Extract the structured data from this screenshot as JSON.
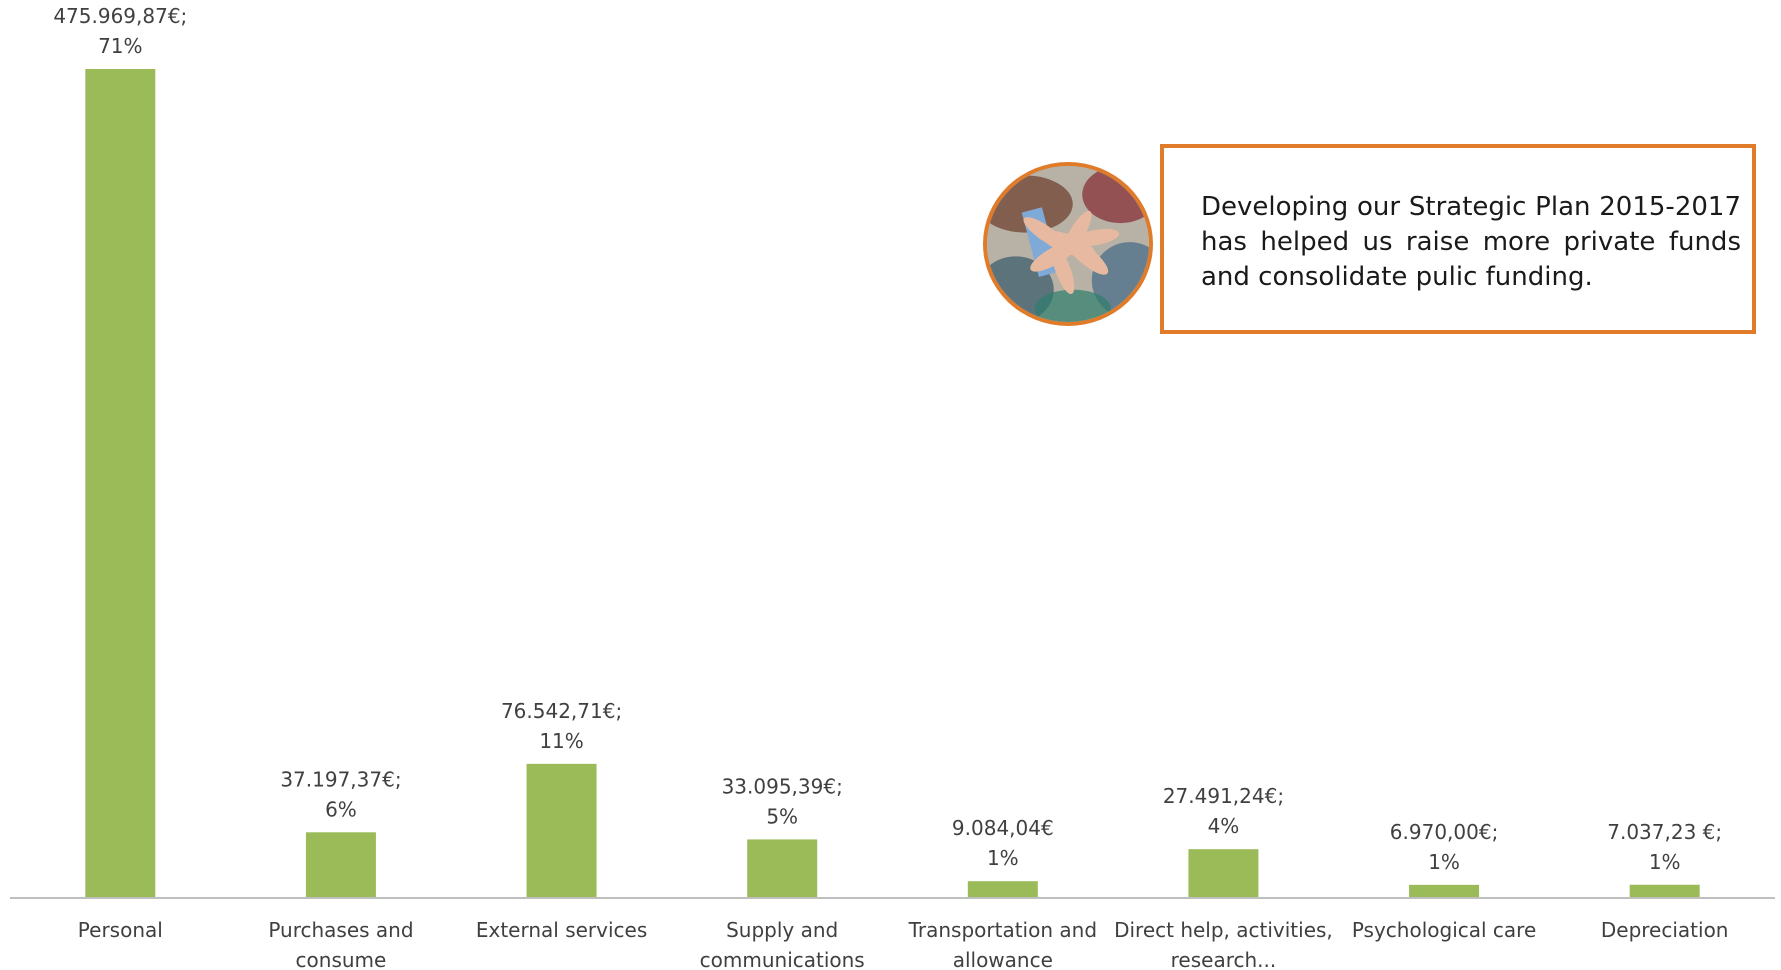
{
  "colors": {
    "bar": "#9bbb59",
    "axis": "#bfbfbf",
    "text": "#404040",
    "callout_border": "#e07b2a"
  },
  "chart_data": {
    "type": "bar",
    "categories": [
      [
        "Personal"
      ],
      [
        "Purchases and",
        "consume"
      ],
      [
        "External services"
      ],
      [
        "Supply and",
        "communications"
      ],
      [
        "Transportation and",
        "allowance"
      ],
      [
        "Direct help, activities,",
        "research..."
      ],
      [
        "Psychological care"
      ],
      [
        "Depreciation"
      ]
    ],
    "values": [
      475969.87,
      37197.37,
      76542.71,
      33095.39,
      9084.04,
      27491.24,
      6970.0,
      7037.23
    ],
    "data_labels": [
      [
        "475.969,87€;",
        "71%"
      ],
      [
        "37.197,37€;",
        "6%"
      ],
      [
        "76.542,71€;",
        "11%"
      ],
      [
        "33.095,39€;",
        "5%"
      ],
      [
        "9.084,04€",
        "1%"
      ],
      [
        "27.491,24€;",
        "4%"
      ],
      [
        "6.970,00€;",
        "1%"
      ],
      [
        "7.037,23 €;",
        "1%"
      ]
    ],
    "title": "",
    "xlabel": "",
    "ylabel": "",
    "grid": false,
    "ylim": [
      0,
      475969.87
    ]
  },
  "callout": {
    "text": "Developing our Strategic Plan 2015-2017 has helped us raise more private funds and consolidate pulic funding.",
    "image_icon": "hands-together-photo"
  }
}
